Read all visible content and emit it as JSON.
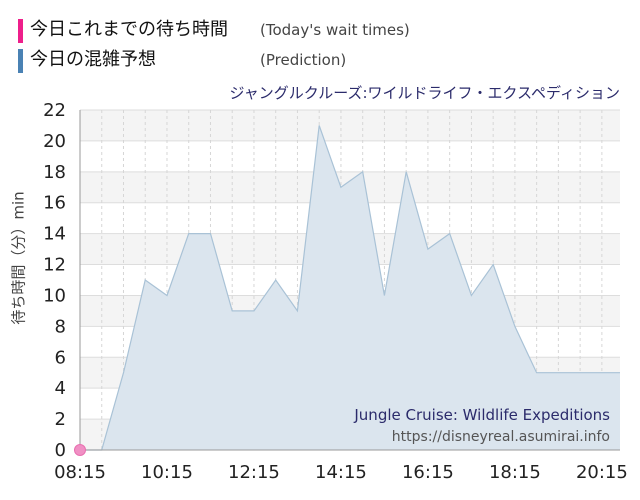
{
  "legend": {
    "items": [
      {
        "label": "今日これまでの待ち時間",
        "sub": "(Today's wait times)",
        "color": "#ee1f8b"
      },
      {
        "label": "今日の混雑予想",
        "sub": "(Prediction)",
        "color": "#4a82b4"
      }
    ]
  },
  "chart_data": {
    "type": "area",
    "title": "ジャングルクルーズ:ワイルドライフ・エクスペディション",
    "ylabel": "待ち時間（分）min",
    "xlabel": "",
    "ylim": [
      0,
      22
    ],
    "yticks": [
      0,
      2,
      4,
      6,
      8,
      10,
      12,
      14,
      16,
      18,
      20,
      22
    ],
    "xlim": [
      "08:15",
      "20:40"
    ],
    "xticks": [
      "08:15",
      "10:15",
      "12:15",
      "14:15",
      "16:15",
      "18:15",
      "20:15"
    ],
    "grid": true,
    "series": [
      {
        "name": "今日の混雑予想",
        "x": [
          "08:15",
          "08:45",
          "09:15",
          "09:45",
          "10:15",
          "10:45",
          "11:15",
          "11:45",
          "12:15",
          "12:45",
          "13:15",
          "13:45",
          "14:15",
          "14:45",
          "15:15",
          "15:45",
          "16:15",
          "16:45",
          "17:15",
          "17:45",
          "18:15",
          "18:45",
          "19:15",
          "19:45",
          "20:15",
          "20:40"
        ],
        "values": [
          0,
          0,
          5,
          11,
          10,
          14,
          14,
          9,
          9,
          11,
          9,
          21,
          17,
          18,
          10,
          18,
          13,
          14,
          10,
          12,
          8,
          5,
          5,
          5,
          5,
          5
        ]
      },
      {
        "name": "今日これまでの待ち時間",
        "x": [
          "08:15"
        ],
        "values": [
          0
        ]
      }
    ],
    "watermark": [
      "Jungle Cruise: Wildlife Expeditions",
      "https://disneyreal.asumirai.info"
    ]
  }
}
